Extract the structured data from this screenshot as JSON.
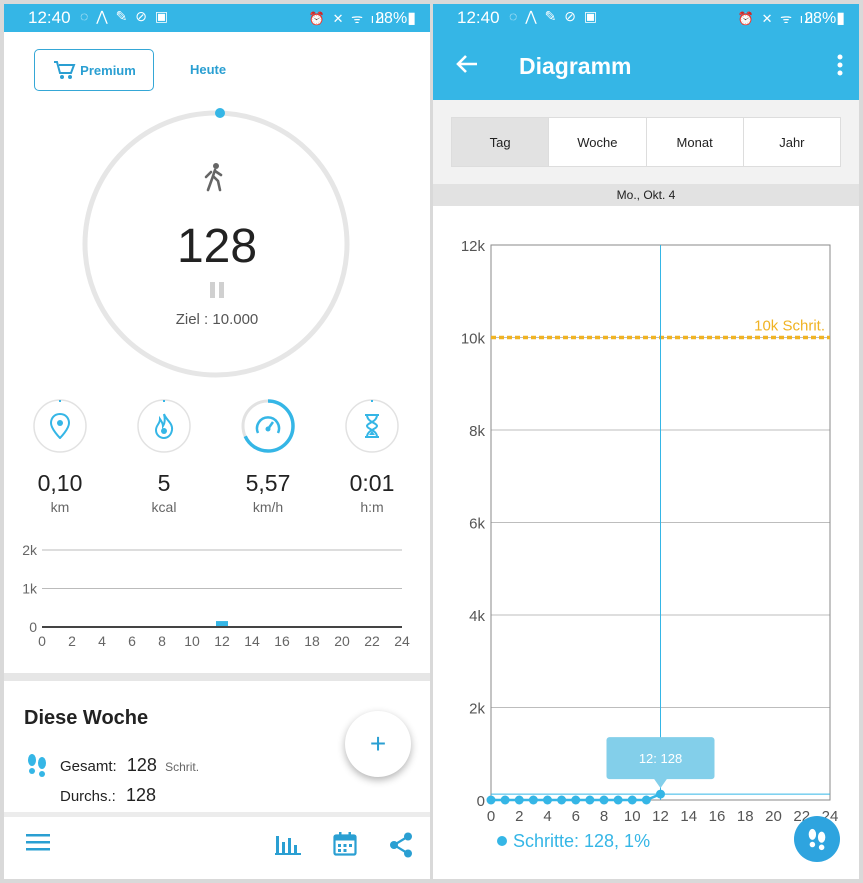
{
  "status_bar": {
    "time": "12:40",
    "battery": "28%",
    "left_icons": [
      "sync-icon",
      "location-icon",
      "satellite-icon",
      "alarm-off-icon",
      "image-icon"
    ],
    "right_icons": [
      "alarm-icon",
      "mute-icon",
      "wifi-icon",
      "signal-icon"
    ]
  },
  "left_screen": {
    "premium_label": "Premium",
    "today_tab_label": "Heute",
    "steps": "128",
    "goal_label": "Ziel : 10.000",
    "stats": [
      {
        "icon": "location-pin-icon",
        "value": "0,10",
        "unit": "km",
        "progress": 0
      },
      {
        "icon": "flame-icon",
        "value": "5",
        "unit": "kcal",
        "progress": 0
      },
      {
        "icon": "speedometer-icon",
        "value": "5,57",
        "unit": "km/h",
        "progress": 0.68
      },
      {
        "icon": "hourglass-icon",
        "value": "0:01",
        "unit": "h:m",
        "progress": 0
      }
    ],
    "week_title": "Diese Woche",
    "week_total_label": "Gesamt:",
    "week_total_value": "128",
    "week_total_unit": "Schrit.",
    "week_avg_label": "Durchs.:",
    "week_avg_value": "128",
    "fab_label": "+"
  },
  "right_screen": {
    "title": "Diagramm",
    "tabs": [
      "Tag",
      "Woche",
      "Monat",
      "Jahr"
    ],
    "active_tab": "Tag",
    "date_label": "Mo., Okt. 4",
    "tooltip": "12: 128",
    "goal_line_label": "10k Schrit.",
    "legend": "Schritte: 128,  1%"
  },
  "colors": {
    "accent": "#35b6e6",
    "accent_dark": "#2a9fd2",
    "goal_line": "#f0b323",
    "ring": "#e6e6e6"
  },
  "chart_data": [
    {
      "type": "bar",
      "x_ticks": [
        "0",
        "2",
        "4",
        "6",
        "8",
        "10",
        "12",
        "14",
        "16",
        "18",
        "20",
        "22",
        "24"
      ],
      "y_ticks": [
        "0",
        "1k",
        "2k"
      ],
      "ylim": [
        0,
        2000
      ],
      "x": [
        12
      ],
      "values": [
        128
      ]
    },
    {
      "type": "line",
      "x_ticks": [
        "0",
        "2",
        "4",
        "6",
        "8",
        "10",
        "12",
        "14",
        "16",
        "18",
        "20",
        "22",
        "24"
      ],
      "y_ticks": [
        "0",
        "2k",
        "4k",
        "6k",
        "8k",
        "10k",
        "12k"
      ],
      "ylim": [
        0,
        12000
      ],
      "xlim": [
        0,
        24
      ],
      "series": [
        {
          "name": "Schritte",
          "x": [
            0,
            1,
            2,
            3,
            4,
            5,
            6,
            7,
            8,
            9,
            10,
            11,
            12
          ],
          "values": [
            0,
            0,
            0,
            0,
            0,
            0,
            0,
            0,
            0,
            0,
            0,
            0,
            128
          ]
        }
      ],
      "goal": 10000
    }
  ]
}
